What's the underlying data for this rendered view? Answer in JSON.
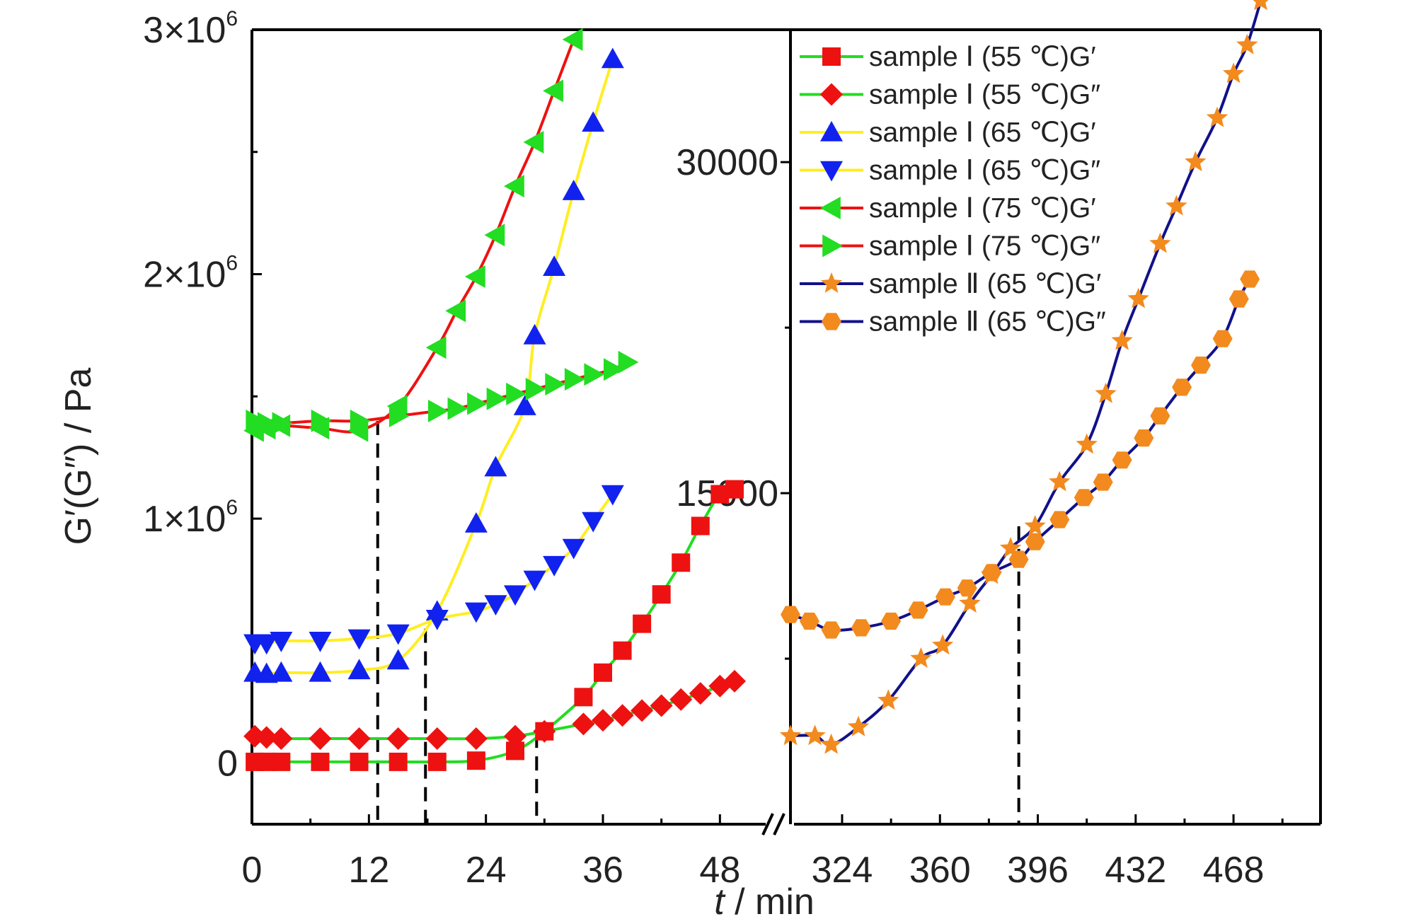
{
  "chart_data": {
    "type": "line",
    "xlabel_italic": "t",
    "xlabel_rest": " / min",
    "ylabel": "G′(G″) / Pa",
    "left_panel": {
      "xlim": [
        0,
        54
      ],
      "ylim": [
        -250000,
        3000000
      ],
      "xticks": [
        0,
        12,
        24,
        36,
        48
      ],
      "yticks": [
        {
          "value": 0,
          "mantissa": "0",
          "exp": ""
        },
        {
          "value": 1000000,
          "mantissa": "1×10",
          "exp": "6"
        },
        {
          "value": 2000000,
          "mantissa": "2×10",
          "exp": "6"
        },
        {
          "value": 3000000,
          "mantissa": "3×10",
          "exp": "6"
        }
      ],
      "guides_x": [
        12.9,
        17.8,
        29.2
      ],
      "series": [
        {
          "name": "sample Ⅰ (55 ℃)G′",
          "line_color": "#22dd22",
          "marker": "square",
          "marker_color": "#ee1111",
          "x": [
            0.3,
            1.5,
            3,
            7,
            11,
            15,
            19,
            23,
            27,
            30,
            34,
            36,
            38,
            40,
            42,
            44,
            46,
            48,
            49.5
          ],
          "y": [
            5000,
            5000,
            5000,
            5000,
            5000,
            5000,
            5000,
            10000,
            50000,
            130000,
            270000,
            370000,
            460000,
            570000,
            690000,
            820000,
            970000,
            1100000,
            1120000
          ]
        },
        {
          "name": "sample Ⅰ (55 ℃)G″",
          "line_color": "#22dd22",
          "marker": "diamond",
          "marker_color": "#ee1111",
          "x": [
            0.3,
            1.5,
            3,
            7,
            11,
            15,
            19,
            23,
            27,
            30,
            34,
            36,
            38,
            40,
            42,
            44,
            46,
            48,
            49.5
          ],
          "y": [
            110000,
            105000,
            100000,
            100000,
            100000,
            100000,
            100000,
            100000,
            110000,
            130000,
            160000,
            175000,
            195000,
            215000,
            235000,
            260000,
            285000,
            315000,
            335000
          ]
        },
        {
          "name": "sample Ⅰ (65 ℃)G′",
          "line_color": "#ffee22",
          "marker": "triangle-up",
          "marker_color": "#1122ee",
          "x": [
            0.3,
            1.5,
            3,
            7,
            11,
            15,
            19,
            23,
            25,
            28,
            29,
            31,
            33,
            35,
            37
          ],
          "y": [
            370000,
            365000,
            370000,
            370000,
            380000,
            420000,
            620000,
            980000,
            1210000,
            1460000,
            1750000,
            2030000,
            2340000,
            2620000,
            2880000
          ]
        },
        {
          "name": "sample Ⅰ (65 ℃)G″",
          "line_color": "#ffee22",
          "marker": "triangle-down",
          "marker_color": "#1122ee",
          "x": [
            0.3,
            1.5,
            3,
            7,
            11,
            15,
            19,
            23,
            25,
            27,
            29,
            31,
            33,
            35,
            37
          ],
          "y": [
            490000,
            490000,
            500000,
            500000,
            510000,
            530000,
            590000,
            620000,
            650000,
            690000,
            750000,
            810000,
            880000,
            990000,
            1100000
          ]
        },
        {
          "name": "sample Ⅰ (75 ℃)G′",
          "line_color": "#ee1111",
          "marker": "triangle-left",
          "marker_color": "#22dd22",
          "x": [
            0.3,
            1.5,
            3,
            7,
            11,
            15,
            19,
            21,
            23,
            25,
            27,
            29,
            31,
            33
          ],
          "y": [
            1360000,
            1370000,
            1380000,
            1370000,
            1360000,
            1460000,
            1700000,
            1850000,
            1990000,
            2160000,
            2360000,
            2540000,
            2750000,
            2960000
          ]
        },
        {
          "name": "sample Ⅰ (75 ℃)G″",
          "line_color": "#ee1111",
          "marker": "triangle-right",
          "marker_color": "#22dd22",
          "x": [
            0.3,
            1.5,
            3,
            7,
            11,
            15,
            19,
            21,
            23,
            25,
            27,
            29,
            31,
            33,
            35,
            37,
            38.5
          ],
          "y": [
            1400000,
            1390000,
            1390000,
            1400000,
            1400000,
            1420000,
            1440000,
            1450000,
            1470000,
            1490000,
            1510000,
            1530000,
            1550000,
            1570000,
            1590000,
            1610000,
            1640000
          ]
        }
      ]
    },
    "right_panel": {
      "xlim": [
        305,
        500
      ],
      "ylim": [
        0,
        36000
      ],
      "xticks": [
        324,
        360,
        396,
        432,
        468
      ],
      "yticks": [
        {
          "value": 15000,
          "label": "15000"
        },
        {
          "value": 30000,
          "label": "30000"
        }
      ],
      "guides_x": [
        389
      ],
      "series": [
        {
          "name": "sample Ⅱ (65 ℃)G′",
          "line_color": "#11118a",
          "marker": "star",
          "marker_color": "#f28a1e",
          "x": [
            305,
            314,
            320,
            330,
            341,
            353,
            361,
            371,
            379,
            386,
            395,
            404,
            414,
            421,
            427,
            433,
            441,
            447,
            454,
            462,
            468,
            473,
            478
          ],
          "y": [
            4000,
            4000,
            3600,
            4400,
            5600,
            7500,
            8100,
            10000,
            11300,
            12500,
            13500,
            15500,
            17200,
            19500,
            21900,
            23800,
            26300,
            28000,
            30000,
            32000,
            34000,
            35300,
            37300
          ]
        },
        {
          "name": "sample Ⅱ (65 ℃)G″",
          "line_color": "#11118a",
          "marker": "hexagon",
          "marker_color": "#f28a1e",
          "x": [
            305,
            312,
            320,
            331,
            342,
            352,
            362,
            370,
            379,
            389,
            395,
            404,
            413,
            420,
            427,
            435,
            441,
            449,
            456,
            464,
            470,
            474
          ],
          "y": [
            9500,
            9200,
            8800,
            8900,
            9200,
            9700,
            10300,
            10700,
            11400,
            12000,
            12800,
            13800,
            14800,
            15500,
            16500,
            17500,
            18500,
            19800,
            20800,
            22000,
            23800,
            24700
          ]
        }
      ]
    }
  }
}
